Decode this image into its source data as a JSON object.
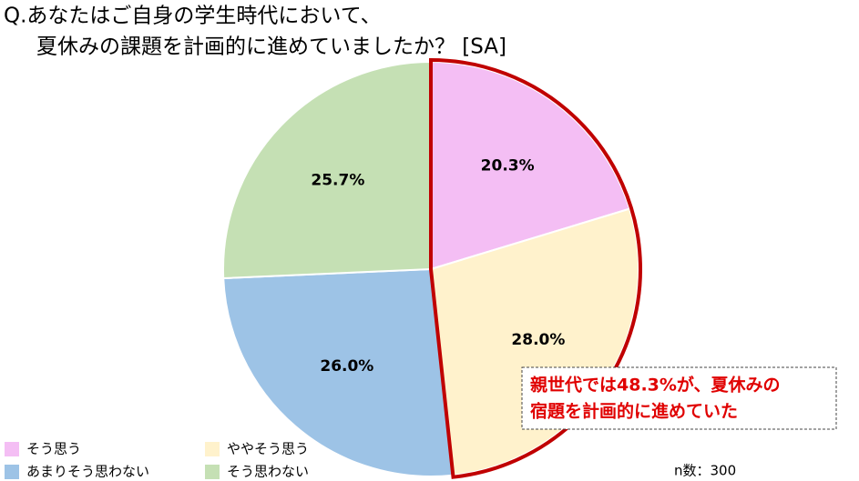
{
  "chart_data": {
    "type": "pie",
    "title": [
      "Q.あなたはご自身の学生時代において、",
      "夏休みの課題を計画的に進めていましたか？ [SA]"
    ],
    "categories": [
      "そう思う",
      "ややそう思う",
      "あまりそう思わない",
      "そう思わない"
    ],
    "values": [
      20.3,
      28.0,
      26.0,
      25.7
    ],
    "value_labels": [
      "20.3%",
      "28.0%",
      "26.0%",
      "25.7%"
    ],
    "colors": [
      "#f4bef4",
      "#fff2cc",
      "#9dc3e6",
      "#c5e0b4"
    ],
    "annotation": [
      "親世代では48.3%が、夏休みの",
      "宿題を計画的に進めていた"
    ],
    "note": "n数：300"
  }
}
